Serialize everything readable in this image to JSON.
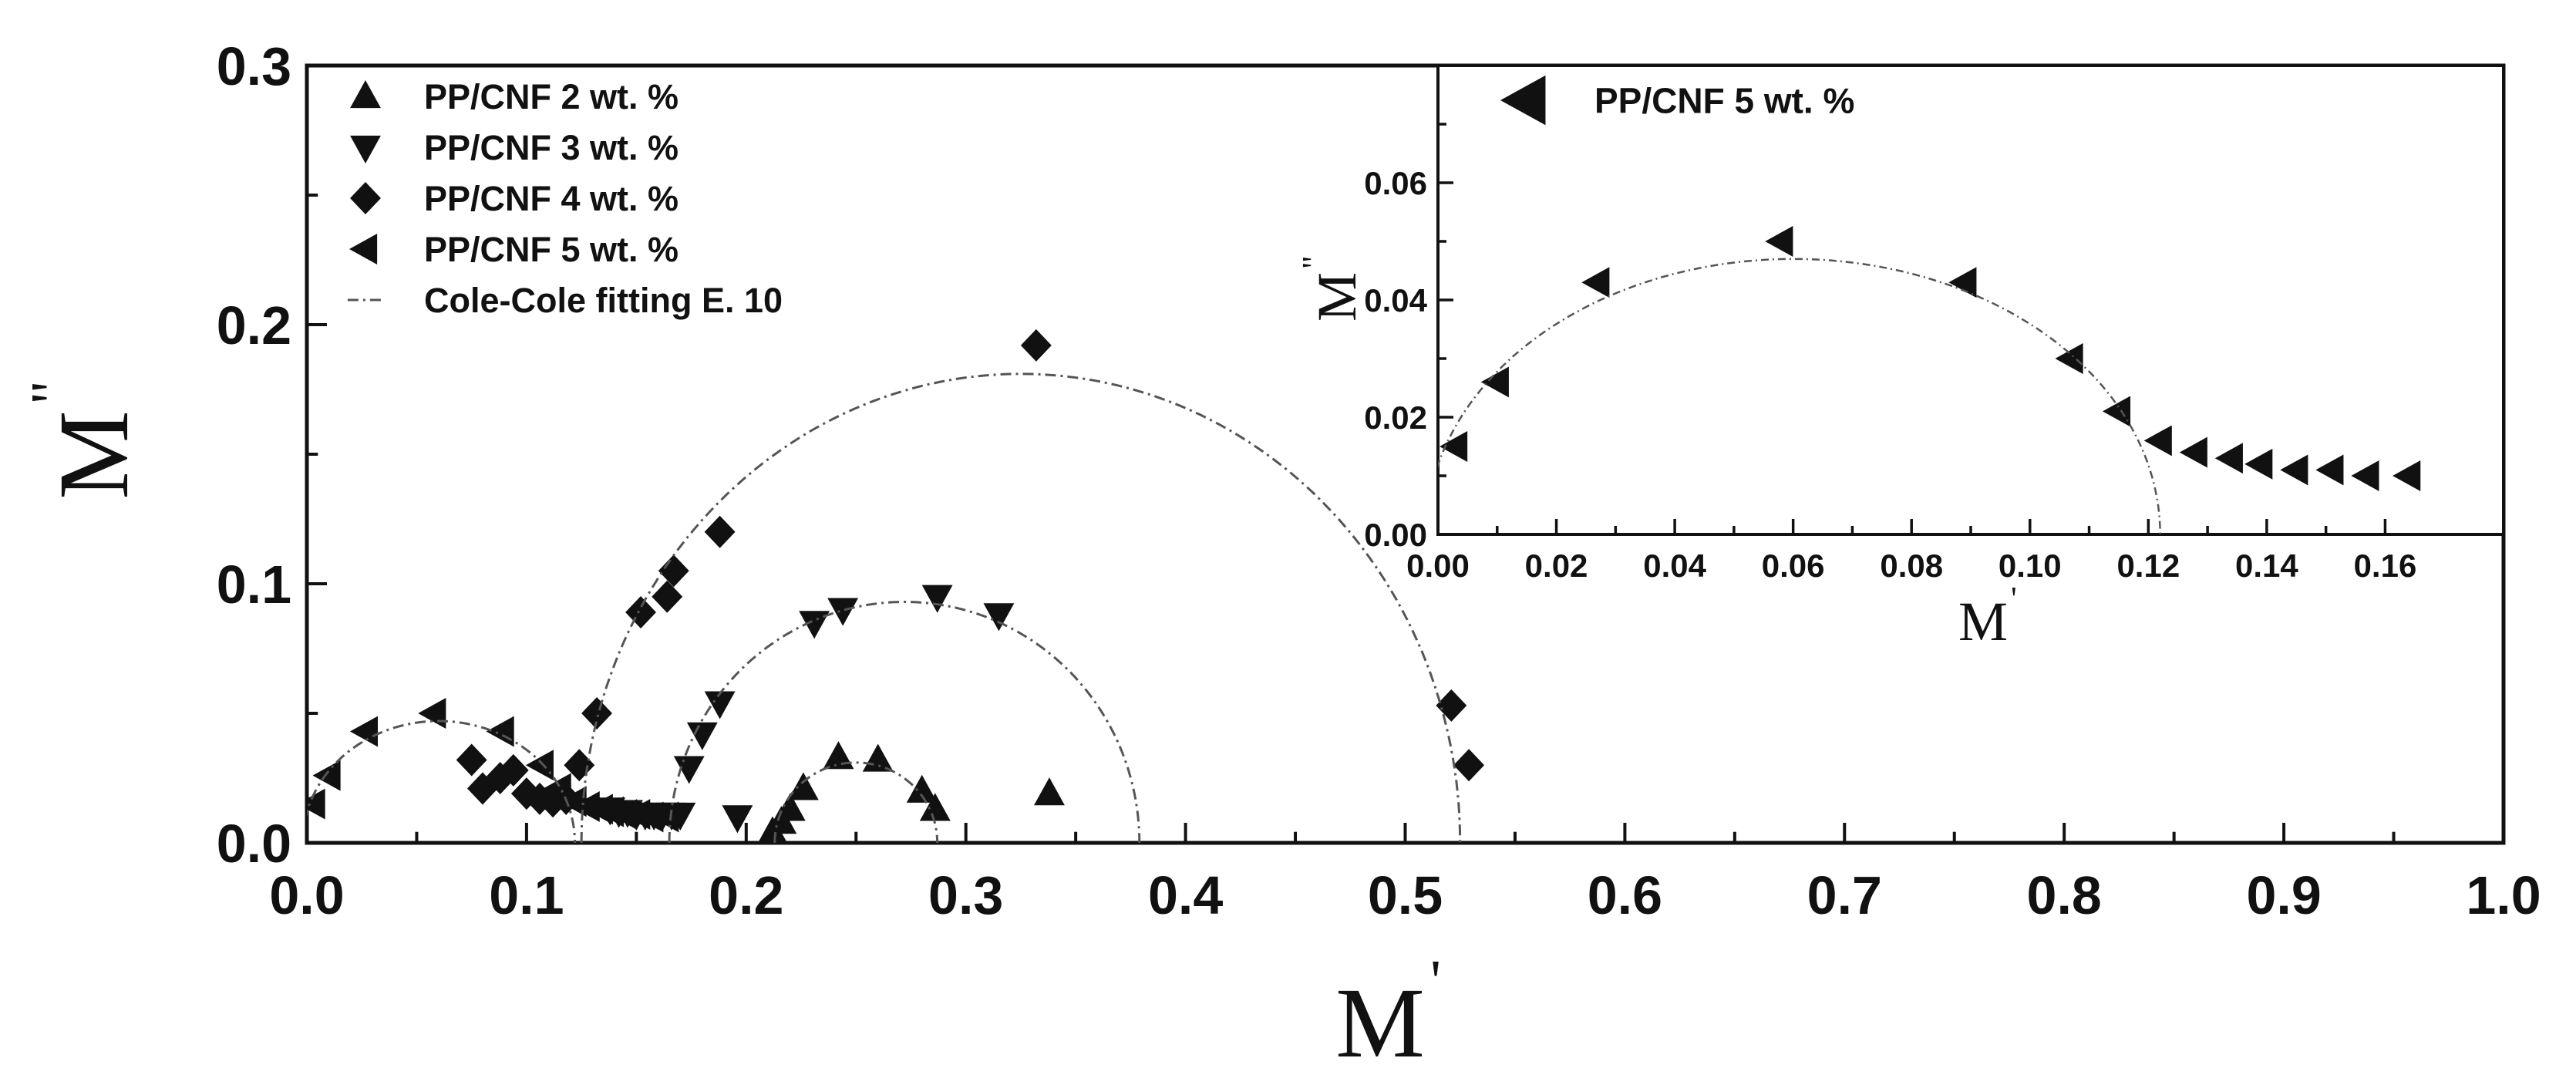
{
  "chart_data": [
    {
      "type": "scatter",
      "xlabel": "M",
      "xlabel_prime": "'",
      "ylabel": "M",
      "ylabel_prime": "\"",
      "xlim": [
        0.0,
        1.0
      ],
      "ylim": [
        0.0,
        0.3
      ],
      "xticks": [
        "0.0",
        "0.1",
        "0.2",
        "0.3",
        "0.4",
        "0.5",
        "0.6",
        "0.7",
        "0.8",
        "0.9",
        "1.0"
      ],
      "yticks": [
        "0.0",
        "0.1",
        "0.2",
        "0.3"
      ],
      "legend_position": "top-left",
      "series": [
        {
          "name": "PP/CNF 2 wt. %",
          "marker": "triangle-up",
          "x": [
            0.212,
            0.216,
            0.22,
            0.226,
            0.242,
            0.26,
            0.28,
            0.286,
            0.338
          ],
          "y": [
            0.004,
            0.008,
            0.013,
            0.021,
            0.033,
            0.032,
            0.02,
            0.013,
            0.019
          ]
        },
        {
          "name": "PP/CNF 3 wt. %",
          "marker": "triangle-down",
          "x": [
            0.138,
            0.142,
            0.146,
            0.15,
            0.154,
            0.158,
            0.162,
            0.166,
            0.17,
            0.174,
            0.18,
            0.188,
            0.196,
            0.231,
            0.244,
            0.287,
            0.315
          ],
          "y": [
            0.013,
            0.012,
            0.012,
            0.011,
            0.011,
            0.011,
            0.011,
            0.011,
            0.011,
            0.029,
            0.042,
            0.054,
            0.01,
            0.085,
            0.09,
            0.095,
            0.088
          ]
        },
        {
          "name": "PP/CNF 4 wt. %",
          "marker": "diamond",
          "x": [
            0.075,
            0.08,
            0.088,
            0.094,
            0.1,
            0.106,
            0.112,
            0.118,
            0.124,
            0.132,
            0.152,
            0.164,
            0.167,
            0.188,
            0.332,
            0.521,
            0.529
          ],
          "y": [
            0.032,
            0.021,
            0.025,
            0.028,
            0.019,
            0.017,
            0.016,
            0.017,
            0.03,
            0.05,
            0.089,
            0.095,
            0.105,
            0.12,
            0.192,
            0.053,
            0.03
          ]
        },
        {
          "name": "PP/CNF 5 wt. %",
          "marker": "triangle-left",
          "x": [
            0.003,
            0.01,
            0.027,
            0.058,
            0.089,
            0.107,
            0.115,
            0.122,
            0.128,
            0.134,
            0.139,
            0.145,
            0.151,
            0.157,
            0.164
          ],
          "y": [
            0.015,
            0.026,
            0.043,
            0.05,
            0.043,
            0.03,
            0.021,
            0.016,
            0.014,
            0.013,
            0.012,
            0.011,
            0.011,
            0.01,
            0.01
          ]
        },
        {
          "name": "Cole-Cole fitting E. 10",
          "marker": "dash-dot-line",
          "arcs": [
            {
              "center": 0.06,
              "radius": 0.062,
              "height": 0.047
            },
            {
              "center": 0.25,
              "radius": 0.037,
              "height": 0.031
            },
            {
              "center": 0.272,
              "radius": 0.107,
              "height": 0.093
            },
            {
              "center": 0.325,
              "radius": 0.2,
              "height": 0.181
            }
          ]
        }
      ]
    },
    {
      "type": "scatter",
      "inset": true,
      "xlabel": "M",
      "xlabel_prime": "'",
      "ylabel": "M",
      "ylabel_prime": "\"",
      "xlim": [
        0.0,
        0.18
      ],
      "ylim": [
        0.0,
        0.08
      ],
      "xticks": [
        "0.00",
        "0.02",
        "0.04",
        "0.06",
        "0.08",
        "0.10",
        "0.12",
        "0.14",
        "0.16"
      ],
      "yticks": [
        "0.00",
        "0.02",
        "0.04",
        "0.06"
      ],
      "legend_position": "top-left",
      "series": [
        {
          "name": "PP/CNF 5 wt. %",
          "marker": "triangle-left",
          "x": [
            0.003,
            0.01,
            0.027,
            0.058,
            0.089,
            0.107,
            0.115,
            0.122,
            0.128,
            0.134,
            0.139,
            0.145,
            0.151,
            0.157,
            0.164
          ],
          "y": [
            0.015,
            0.026,
            0.043,
            0.05,
            0.043,
            0.03,
            0.021,
            0.016,
            0.014,
            0.013,
            0.012,
            0.011,
            0.011,
            0.01,
            0.01
          ]
        },
        {
          "marker": "dash-dot-line",
          "arcs": [
            {
              "center": 0.06,
              "radius": 0.062,
              "height": 0.047
            }
          ]
        }
      ]
    }
  ]
}
